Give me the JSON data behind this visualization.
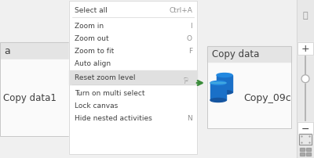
{
  "bg_color": "#f0f0f0",
  "menu_bg": "#ffffff",
  "menu_border": "#d4d4d4",
  "menu_highlight_bg": "#e0e0e0",
  "left_node_bg": "#f0f0f0",
  "left_node_title_bg": "#e2e2e2",
  "left_node_border": "#d0d0d0",
  "menu_items": [
    {
      "text": "Select all",
      "shortcut": "Ctrl+A"
    },
    {
      "text": "Zoom in",
      "shortcut": "I"
    },
    {
      "text": "Zoom out",
      "shortcut": "O"
    },
    {
      "text": "Zoom to fit",
      "shortcut": "F"
    },
    {
      "text": "Auto align",
      "shortcut": ""
    },
    {
      "text": "Reset zoom level",
      "shortcut": "",
      "highlighted": true
    },
    {
      "text": "Turn on multi select",
      "shortcut": ""
    },
    {
      "text": "Lock canvas",
      "shortcut": ""
    },
    {
      "text": "Hide nested activities",
      "shortcut": "N"
    }
  ],
  "left_text_a": "a",
  "left_text_copy": "Copy data1",
  "copy_data_title": "Copy data",
  "copy_data_activity": "Copy_09c",
  "arrow_color": "#3a8c3a",
  "node_border": "#c8c8c8",
  "node_title_bg": "#e4e4e4",
  "node_body_bg": "#fafafa",
  "sidebar_bg": "#e8e8e8",
  "sidebar_border": "#d0d0d0",
  "text_color": "#404040",
  "text_color_light": "#909090",
  "slider_color": "#b0b0b0",
  "icon_blue_dark": "#1555a0",
  "icon_blue_mid": "#1a70c8",
  "icon_blue_light": "#2288e0",
  "icon_cyan": "#50b8e0"
}
